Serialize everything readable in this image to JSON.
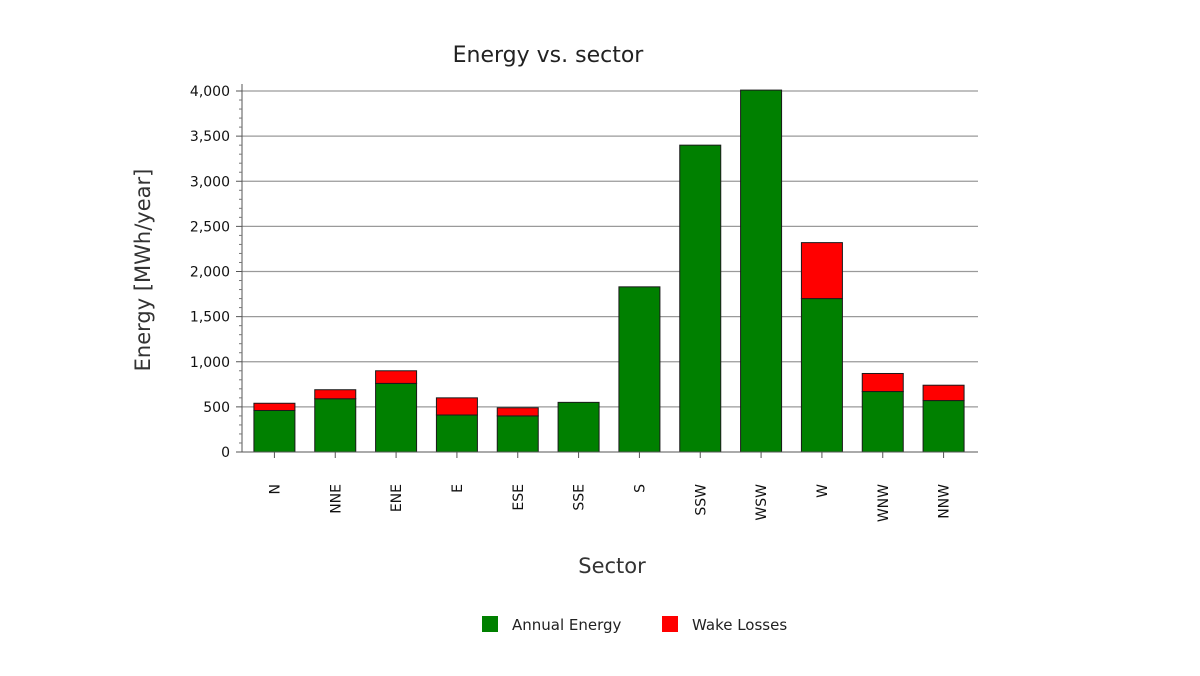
{
  "chart_data": {
    "type": "bar",
    "stacked": true,
    "title": "Energy vs. sector",
    "xlabel": "Sector",
    "ylabel": "Energy [MWh/year]",
    "ylim": [
      0,
      4000
    ],
    "yticks": [
      0,
      500,
      1000,
      1500,
      2000,
      2500,
      3000,
      3500,
      4000
    ],
    "ytick_labels": [
      "0",
      "500",
      "1,000",
      "1,500",
      "2,000",
      "2,500",
      "3,000",
      "3,500",
      "4,000"
    ],
    "grid": true,
    "legend_position": "bottom",
    "categories": [
      "N",
      "NNE",
      "ENE",
      "E",
      "ESE",
      "SSE",
      "S",
      "SSW",
      "WSW",
      "W",
      "WNW",
      "NNW"
    ],
    "series": [
      {
        "name": "Annual Energy",
        "color": "#008000",
        "values": [
          460,
          590,
          760,
          410,
          400,
          550,
          1830,
          3400,
          4010,
          1700,
          670,
          570
        ]
      },
      {
        "name": "Wake Losses",
        "color": "#ff0000",
        "values": [
          80,
          100,
          140,
          190,
          90,
          0,
          0,
          0,
          0,
          620,
          200,
          170
        ]
      }
    ]
  }
}
